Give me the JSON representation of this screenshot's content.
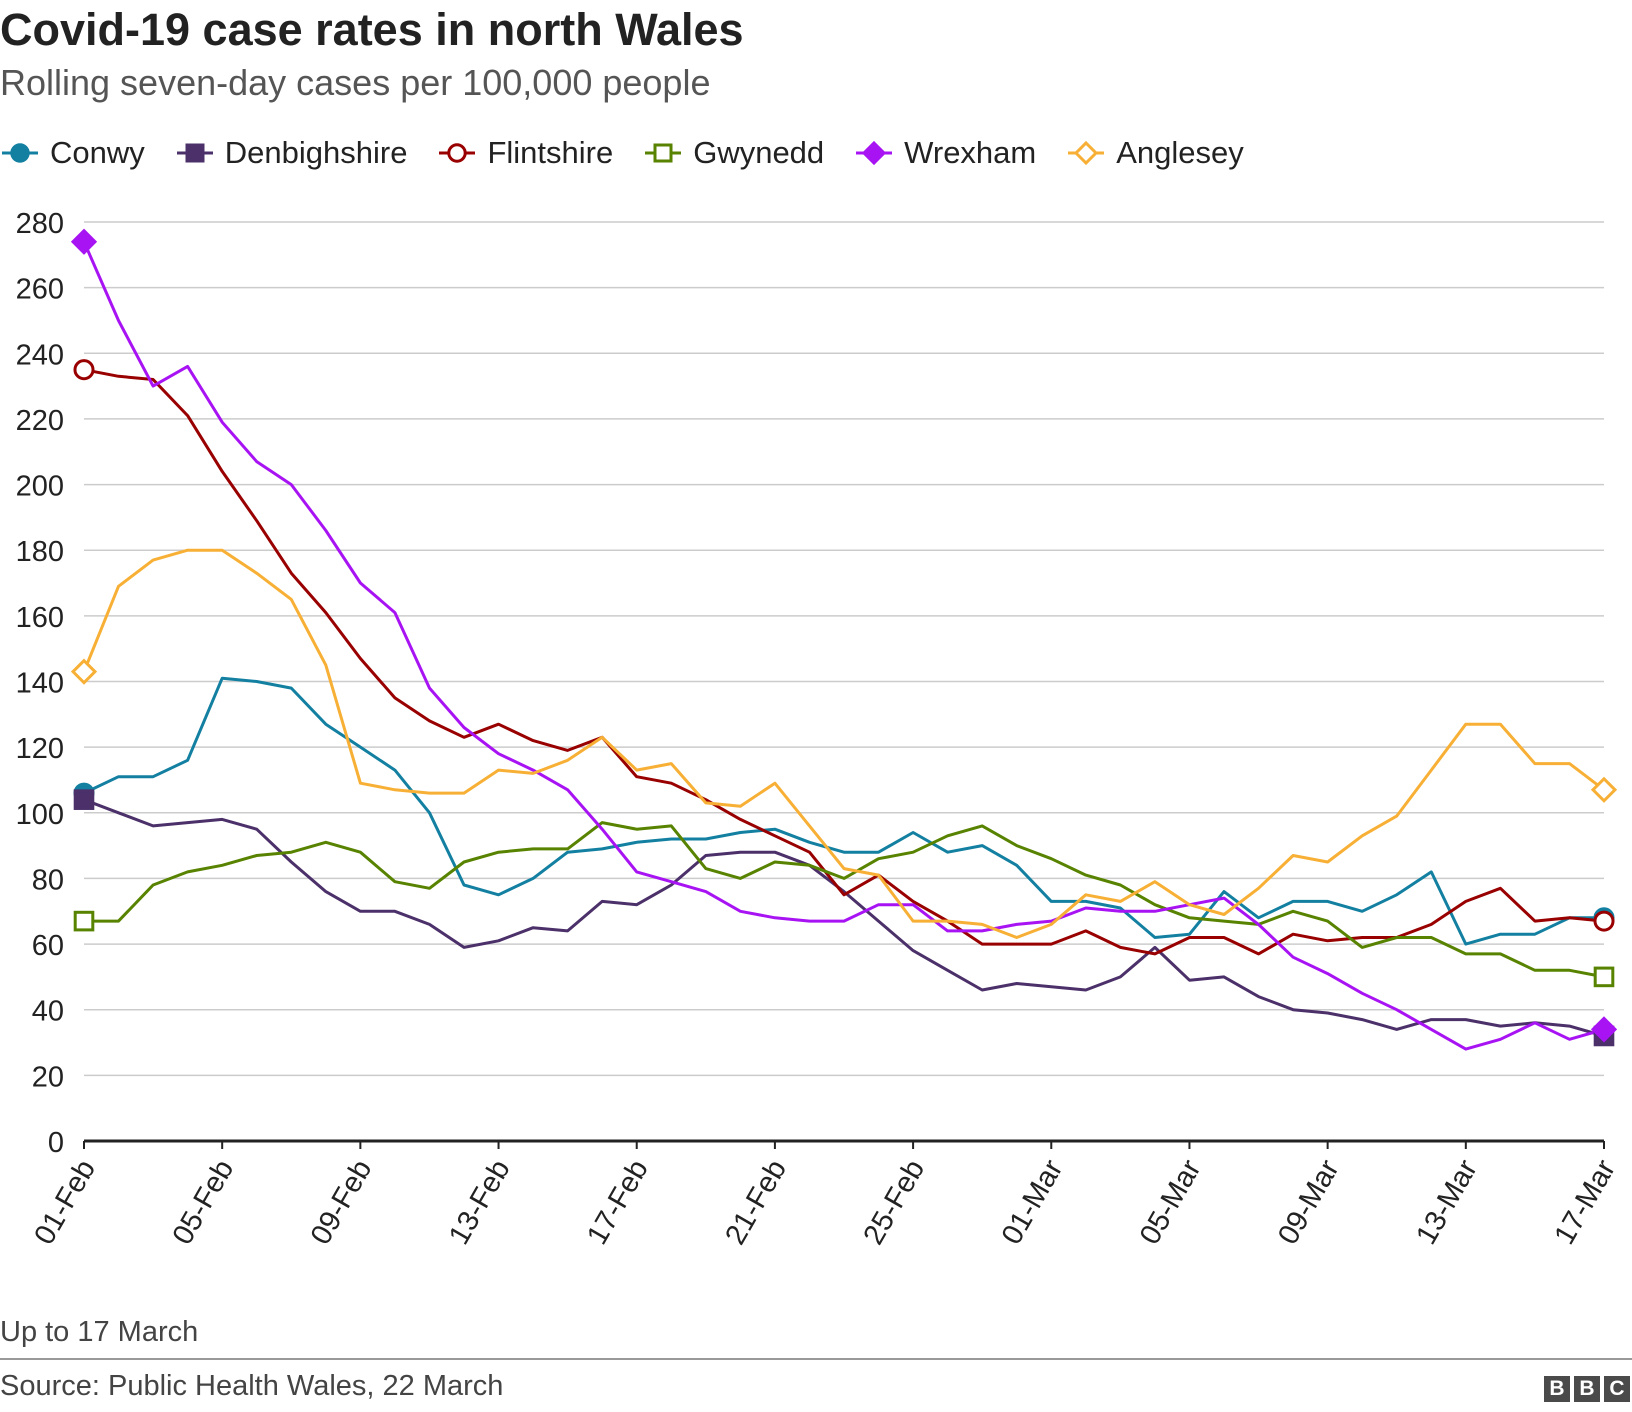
{
  "title": "Covid-19 case rates in north Wales",
  "subtitle": "Rolling seven-day cases per 100,000 people",
  "note": "Up to 17 March",
  "source": "Source: Public Health Wales, 22 March",
  "logo_text": "BBC",
  "chart_data": {
    "type": "line",
    "x": [
      "01-Feb",
      "02-Feb",
      "03-Feb",
      "04-Feb",
      "05-Feb",
      "06-Feb",
      "07-Feb",
      "08-Feb",
      "09-Feb",
      "10-Feb",
      "11-Feb",
      "12-Feb",
      "13-Feb",
      "14-Feb",
      "15-Feb",
      "16-Feb",
      "17-Feb",
      "18-Feb",
      "19-Feb",
      "20-Feb",
      "21-Feb",
      "22-Feb",
      "23-Feb",
      "24-Feb",
      "25-Feb",
      "26-Feb",
      "27-Feb",
      "28-Feb",
      "01-Mar",
      "02-Mar",
      "03-Mar",
      "04-Mar",
      "05-Mar",
      "06-Mar",
      "07-Mar",
      "08-Mar",
      "09-Mar",
      "10-Mar",
      "11-Mar",
      "12-Mar",
      "13-Mar",
      "14-Mar",
      "15-Mar",
      "16-Mar",
      "17-Mar"
    ],
    "x_tick_labels": [
      "01-Feb",
      "05-Feb",
      "09-Feb",
      "13-Feb",
      "17-Feb",
      "21-Feb",
      "25-Feb",
      "01-Mar",
      "05-Mar",
      "09-Mar",
      "13-Mar",
      "17-Mar"
    ],
    "ylim": [
      0,
      280
    ],
    "y_ticks": [
      0,
      20,
      40,
      60,
      80,
      100,
      120,
      140,
      160,
      180,
      200,
      220,
      240,
      260,
      280
    ],
    "grid": true,
    "legend_position": "top",
    "series": [
      {
        "name": "Conwy",
        "color": "#1380a1",
        "marker": "filled-circle",
        "values": [
          106,
          111,
          111,
          116,
          141,
          140,
          138,
          127,
          120,
          113,
          100,
          78,
          75,
          80,
          88,
          89,
          91,
          92,
          92,
          94,
          95,
          91,
          88,
          88,
          94,
          88,
          90,
          84,
          73,
          73,
          71,
          62,
          63,
          76,
          68,
          73,
          73,
          70,
          75,
          82,
          60,
          63,
          63,
          68,
          68
        ]
      },
      {
        "name": "Denbighshire",
        "color": "#4b306a",
        "marker": "filled-square",
        "values": [
          104,
          100,
          96,
          97,
          98,
          95,
          85,
          76,
          70,
          70,
          66,
          59,
          61,
          65,
          64,
          73,
          72,
          78,
          87,
          88,
          88,
          84,
          76,
          67,
          58,
          52,
          46,
          48,
          47,
          46,
          50,
          59,
          49,
          50,
          44,
          40,
          39,
          37,
          34,
          37,
          37,
          35,
          36,
          35,
          32
        ]
      },
      {
        "name": "Flintshire",
        "color": "#990000",
        "marker": "open-circle",
        "values": [
          235,
          233,
          232,
          221,
          204,
          189,
          173,
          161,
          147,
          135,
          128,
          123,
          127,
          122,
          119,
          123,
          111,
          109,
          104,
          98,
          93,
          88,
          75,
          81,
          73,
          67,
          60,
          60,
          60,
          64,
          59,
          57,
          62,
          62,
          57,
          63,
          61,
          62,
          62,
          66,
          73,
          77,
          67,
          68,
          67
        ]
      },
      {
        "name": "Gwynedd",
        "color": "#588300",
        "marker": "open-square",
        "values": [
          67,
          67,
          78,
          82,
          84,
          87,
          88,
          91,
          88,
          79,
          77,
          85,
          88,
          89,
          89,
          97,
          95,
          96,
          83,
          80,
          85,
          84,
          80,
          86,
          88,
          93,
          96,
          90,
          86,
          81,
          78,
          72,
          68,
          67,
          66,
          70,
          67,
          59,
          62,
          62,
          57,
          57,
          52,
          52,
          50
        ]
      },
      {
        "name": "Wrexham",
        "color": "#a813f3",
        "marker": "filled-diamond",
        "values": [
          274,
          250,
          230,
          236,
          219,
          207,
          200,
          186,
          170,
          161,
          138,
          126,
          118,
          113,
          107,
          95,
          82,
          79,
          76,
          70,
          68,
          67,
          67,
          72,
          72,
          64,
          64,
          66,
          67,
          71,
          70,
          70,
          72,
          74,
          66,
          56,
          51,
          45,
          40,
          34,
          28,
          31,
          36,
          31,
          34
        ]
      },
      {
        "name": "Anglesey",
        "color": "#f7b035",
        "marker": "open-diamond",
        "values": [
          143,
          169,
          177,
          180,
          180,
          173,
          165,
          145,
          109,
          107,
          106,
          106,
          113,
          112,
          116,
          123,
          113,
          115,
          103,
          102,
          109,
          96,
          83,
          81,
          67,
          67,
          66,
          62,
          66,
          75,
          73,
          79,
          72,
          69,
          77,
          87,
          85,
          93,
          99,
          113,
          127,
          127,
          115,
          115,
          107
        ]
      }
    ]
  }
}
